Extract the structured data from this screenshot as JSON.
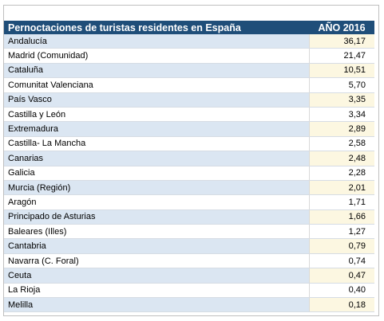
{
  "table": {
    "header": {
      "label": "Pernoctaciones de turistas residentes en España",
      "year": "AÑO 2016"
    },
    "rows": [
      {
        "region": "Andalucía",
        "value": "36,17"
      },
      {
        "region": "Madrid (Comunidad)",
        "value": "21,47"
      },
      {
        "region": "Cataluña",
        "value": "10,51"
      },
      {
        "region": "Comunitat Valenciana",
        "value": "5,70"
      },
      {
        "region": "País Vasco",
        "value": "3,35"
      },
      {
        "region": "Castilla y León",
        "value": "3,34"
      },
      {
        "region": "Extremadura",
        "value": "2,89"
      },
      {
        "region": "Castilla- La Mancha",
        "value": "2,58"
      },
      {
        "region": "Canarias",
        "value": "2,48"
      },
      {
        "region": "Galicia",
        "value": "2,28"
      },
      {
        "region": "Murcia (Región)",
        "value": "2,01"
      },
      {
        "region": "Aragón",
        "value": "1,71"
      },
      {
        "region": "Principado de Asturias",
        "value": "1,66"
      },
      {
        "region": "Baleares (Illes)",
        "value": "1,27"
      },
      {
        "region": "Cantabria",
        "value": "0,79"
      },
      {
        "region": "Navarra (C. Foral)",
        "value": "0,74"
      },
      {
        "region": "Ceuta",
        "value": "0,47"
      },
      {
        "region": "La Rioja",
        "value": "0,40"
      },
      {
        "region": "Melilla",
        "value": "0,18"
      }
    ]
  },
  "colors": {
    "header_bg": "#1f4e79",
    "header_text": "#ffffff",
    "row_alt_region": "#dbe6f2",
    "row_alt_value": "#fcf7e1"
  }
}
